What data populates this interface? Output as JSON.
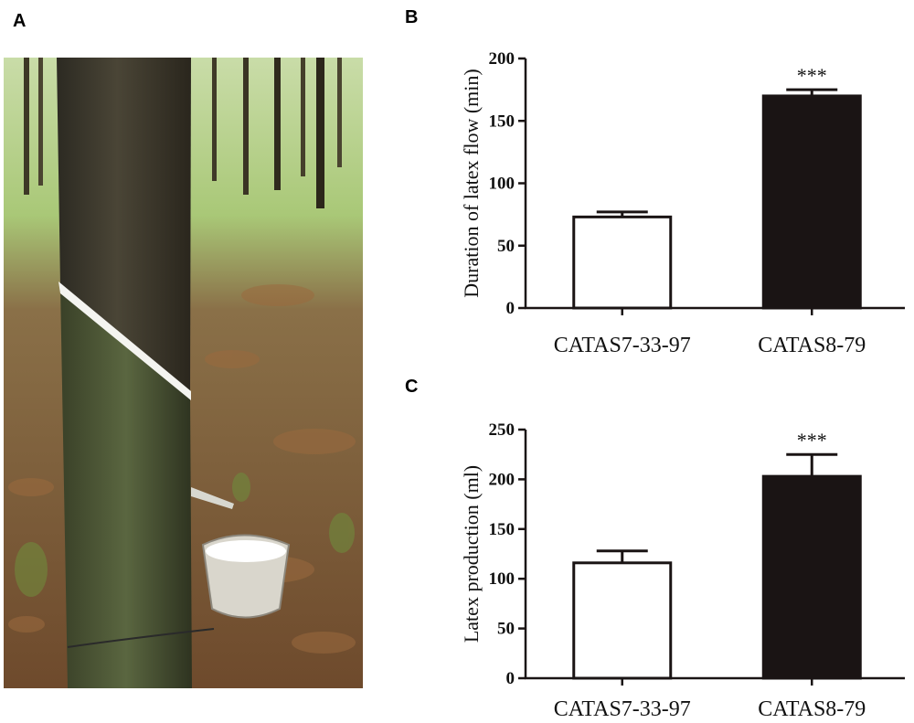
{
  "panels": {
    "a_label": "A",
    "b_label": "B",
    "c_label": "C"
  },
  "photo": {
    "colors": {
      "bark_dark": "#3b3428",
      "bark_green": "#55603a",
      "latex": "#f4f4f0",
      "cup": "#d9d6cc",
      "forest_floor": "#8a5a35",
      "foliage": "#9fc36a"
    }
  },
  "chart_data": [
    {
      "type": "bar",
      "categories": [
        "CATAS7-33-97",
        "CATAS8-79"
      ],
      "values": [
        73,
        170
      ],
      "errors": [
        4,
        5
      ],
      "significance": [
        "",
        "***"
      ],
      "ylabel": "Duration of latex flow (min)",
      "ylim": [
        0,
        200
      ],
      "yticks": [
        0,
        50,
        100,
        150,
        200
      ],
      "fills": [
        "#ffffff",
        "#1a1414"
      ],
      "stroke": "#1a1414"
    },
    {
      "type": "bar",
      "categories": [
        "CATAS7-33-97",
        "CATAS8-79"
      ],
      "values": [
        116,
        203
      ],
      "errors": [
        12,
        22
      ],
      "significance": [
        "",
        "***"
      ],
      "ylabel": "Latex production (ml)",
      "ylim": [
        0,
        250
      ],
      "yticks": [
        0,
        50,
        100,
        150,
        200,
        250
      ],
      "fills": [
        "#ffffff",
        "#1a1414"
      ],
      "stroke": "#1a1414"
    }
  ]
}
